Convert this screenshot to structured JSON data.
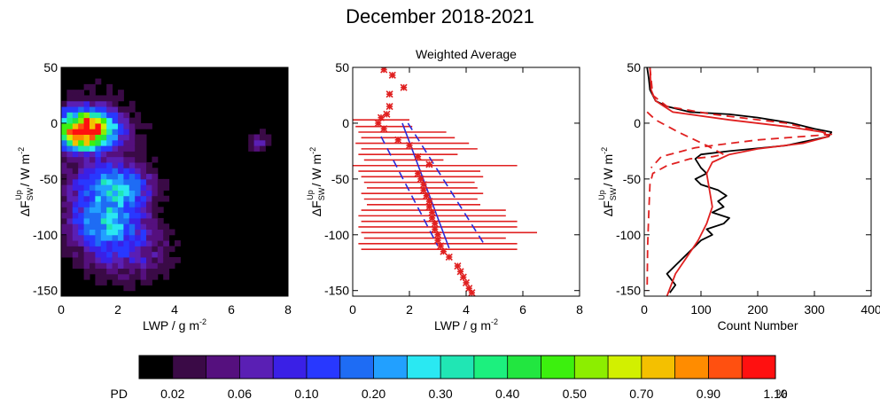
{
  "title": "December 2018-2021",
  "chart_data": [
    {
      "type": "heatmap",
      "xlabel_main": "LWP / g m",
      "xlabel_sup": "-2",
      "ylabel_main": "ΔF",
      "ylabel_sub": "SW",
      "ylabel_sup": "Up",
      "ylabel_unit": " / W m",
      "ylabel_unit_sup": "-2",
      "xlim": [
        0,
        8
      ],
      "ylim": [
        -155,
        50
      ],
      "xticks": [
        "0",
        "2",
        "4",
        "6",
        "8"
      ],
      "yticks": [
        "50",
        "0",
        "-50",
        "-100",
        "-150"
      ],
      "blobs": [
        {
          "x": 0.9,
          "y": -5,
          "sx": 0.55,
          "sy": 9,
          "w": 1.1
        },
        {
          "x": 0.6,
          "y": -12,
          "sx": 0.3,
          "sy": 5,
          "w": 0.5
        },
        {
          "x": 1.9,
          "y": -58,
          "sx": 0.7,
          "sy": 11,
          "w": 0.24
        },
        {
          "x": 1.6,
          "y": -88,
          "sx": 0.75,
          "sy": 13,
          "w": 0.2
        },
        {
          "x": 1.3,
          "y": -40,
          "sx": 1.3,
          "sy": 55,
          "w": 0.05
        },
        {
          "x": 2.4,
          "y": -115,
          "sx": 1.0,
          "sy": 18,
          "w": 0.07
        },
        {
          "x": 7.0,
          "y": -16,
          "sx": 0.25,
          "sy": 6,
          "w": 0.07
        }
      ]
    },
    {
      "type": "scatter",
      "title": "Weighted Average",
      "xlabel_main": "LWP / g m",
      "xlabel_sup": "-2",
      "ylabel_main": "ΔF",
      "ylabel_sub": "SW",
      "ylabel_sup": "Up",
      "ylabel_unit": " / W m",
      "ylabel_unit_sup": "-2",
      "xlim": [
        0,
        8
      ],
      "ylim": [
        -155,
        50
      ],
      "xticks": [
        "0",
        "2",
        "4",
        "6",
        "8"
      ],
      "yticks": [
        "50",
        "0",
        "-50",
        "-100",
        "-150"
      ],
      "points": [
        [
          1.1,
          48
        ],
        [
          1.4,
          43
        ],
        [
          1.8,
          32
        ],
        [
          1.3,
          26
        ],
        [
          1.3,
          15
        ],
        [
          1.2,
          8
        ],
        [
          1.0,
          5
        ],
        [
          0.9,
          0
        ],
        [
          1.1,
          -5
        ],
        [
          1.6,
          -15
        ],
        [
          2.0,
          -20
        ],
        [
          2.3,
          -30
        ],
        [
          2.7,
          -37
        ],
        [
          2.3,
          -45
        ],
        [
          2.4,
          -50
        ],
        [
          2.5,
          -55
        ],
        [
          2.5,
          -60
        ],
        [
          2.6,
          -65
        ],
        [
          2.7,
          -70
        ],
        [
          2.7,
          -75
        ],
        [
          2.8,
          -80
        ],
        [
          2.8,
          -85
        ],
        [
          2.9,
          -90
        ],
        [
          2.9,
          -95
        ],
        [
          3.0,
          -100
        ],
        [
          3.0,
          -105
        ],
        [
          3.1,
          -110
        ],
        [
          3.2,
          -115
        ],
        [
          3.4,
          -120
        ],
        [
          3.7,
          -128
        ],
        [
          3.8,
          -133
        ],
        [
          3.9,
          -138
        ],
        [
          4.0,
          -143
        ],
        [
          4.1,
          -148
        ],
        [
          4.2,
          -152
        ]
      ],
      "hbars": [
        {
          "y": 3,
          "x0": 0.0,
          "x1": 2.0
        },
        {
          "y": -3,
          "x0": 0.1,
          "x1": 2.1
        },
        {
          "y": -8,
          "x0": 0.2,
          "x1": 3.3
        },
        {
          "y": -13,
          "x0": 0.3,
          "x1": 3.6
        },
        {
          "y": -18,
          "x0": 0.1,
          "x1": 4.1
        },
        {
          "y": -23,
          "x0": 0.3,
          "x1": 4.4
        },
        {
          "y": -28,
          "x0": 0.2,
          "x1": 3.7
        },
        {
          "y": -33,
          "x0": 0.4,
          "x1": 3.2
        },
        {
          "y": -38,
          "x0": 0.0,
          "x1": 5.8
        },
        {
          "y": -43,
          "x0": 0.2,
          "x1": 4.5
        },
        {
          "y": -48,
          "x0": 0.3,
          "x1": 4.6
        },
        {
          "y": -53,
          "x0": 0.4,
          "x1": 4.3
        },
        {
          "y": -58,
          "x0": 0.5,
          "x1": 4.4
        },
        {
          "y": -63,
          "x0": 0.3,
          "x1": 4.6
        },
        {
          "y": -68,
          "x0": 0.4,
          "x1": 4.4
        },
        {
          "y": -73,
          "x0": 0.5,
          "x1": 4.5
        },
        {
          "y": -78,
          "x0": 0.3,
          "x1": 5.4
        },
        {
          "y": -83,
          "x0": 0.2,
          "x1": 5.4
        },
        {
          "y": -88,
          "x0": 0.3,
          "x1": 5.8
        },
        {
          "y": -93,
          "x0": 0.2,
          "x1": 5.8
        },
        {
          "y": -98,
          "x0": 0.3,
          "x1": 6.5
        },
        {
          "y": -103,
          "x0": 0.4,
          "x1": 5.4
        },
        {
          "y": -108,
          "x0": 0.2,
          "x1": 5.8
        },
        {
          "y": -113,
          "x0": 0.3,
          "x1": 5.8
        }
      ],
      "fit": [
        [
          1.75,
          0
        ],
        [
          3.4,
          -112
        ]
      ],
      "fit_upper": [
        [
          1.95,
          0
        ],
        [
          4.6,
          -107
        ]
      ],
      "fit_lower": [
        [
          1.0,
          -12
        ],
        [
          3.0,
          -110
        ]
      ]
    },
    {
      "type": "line",
      "xlabel": "Count Number",
      "ylabel_main": "ΔF",
      "ylabel_sub": "SW",
      "ylabel_sup": "Up",
      "ylabel_unit": " / W m",
      "ylabel_unit_sup": "-2",
      "xlim": [
        0,
        400
      ],
      "ylim": [
        -155,
        50
      ],
      "xticks": [
        "0",
        "100",
        "200",
        "300",
        "400"
      ],
      "yticks": [
        "50",
        "0",
        "-50",
        "-100",
        "-150"
      ],
      "series": [
        {
          "color": "#000000",
          "style": "solid",
          "points": [
            [
              5,
              50
            ],
            [
              8,
              40
            ],
            [
              10,
              30
            ],
            [
              15,
              25
            ],
            [
              20,
              20
            ],
            [
              40,
              15
            ],
            [
              80,
              10
            ],
            [
              150,
              8
            ],
            [
              200,
              5
            ],
            [
              260,
              0
            ],
            [
              300,
              -5
            ],
            [
              330,
              -8
            ],
            [
              325,
              -12
            ],
            [
              250,
              -20
            ],
            [
              150,
              -25
            ],
            [
              100,
              -28
            ],
            [
              90,
              -32
            ],
            [
              100,
              -40
            ],
            [
              110,
              -45
            ],
            [
              90,
              -50
            ],
            [
              100,
              -55
            ],
            [
              130,
              -60
            ],
            [
              145,
              -65
            ],
            [
              130,
              -70
            ],
            [
              140,
              -75
            ],
            [
              120,
              -80
            ],
            [
              150,
              -85
            ],
            [
              140,
              -90
            ],
            [
              110,
              -95
            ],
            [
              120,
              -100
            ],
            [
              100,
              -105
            ],
            [
              80,
              -115
            ],
            [
              60,
              -125
            ],
            [
              40,
              -135
            ],
            [
              55,
              -145
            ],
            [
              45,
              -152
            ]
          ]
        },
        {
          "color": "#e02020",
          "style": "solid",
          "points": [
            [
              10,
              50
            ],
            [
              12,
              30
            ],
            [
              20,
              20
            ],
            [
              50,
              10
            ],
            [
              150,
              3
            ],
            [
              250,
              -3
            ],
            [
              315,
              -8
            ],
            [
              325,
              -12
            ],
            [
              280,
              -18
            ],
            [
              200,
              -23
            ],
            [
              150,
              -28
            ],
            [
              120,
              -35
            ],
            [
              110,
              -45
            ],
            [
              115,
              -60
            ],
            [
              120,
              -75
            ],
            [
              110,
              -90
            ],
            [
              95,
              -105
            ],
            [
              75,
              -120
            ],
            [
              55,
              -135
            ],
            [
              40,
              -155
            ]
          ]
        },
        {
          "color": "#e02020",
          "style": "dash",
          "points": [
            [
              10,
              50
            ],
            [
              15,
              25
            ],
            [
              40,
              15
            ],
            [
              120,
              8
            ],
            [
              250,
              0
            ],
            [
              330,
              -10
            ],
            [
              200,
              -15
            ],
            [
              90,
              -22
            ],
            [
              30,
              -30
            ],
            [
              12,
              -40
            ]
          ]
        },
        {
          "color": "#e02020",
          "style": "dash",
          "points": [
            [
              5,
              10
            ],
            [
              20,
              3
            ],
            [
              60,
              -8
            ],
            [
              110,
              -20
            ],
            [
              140,
              -28
            ],
            [
              120,
              -30
            ],
            [
              80,
              -32
            ],
            [
              40,
              -38
            ],
            [
              15,
              -45
            ],
            [
              10,
              -55
            ],
            [
              8,
              -80
            ],
            [
              6,
              -110
            ],
            [
              5,
              -150
            ]
          ]
        }
      ]
    }
  ],
  "colorbar": {
    "label": "PD",
    "unit": "%",
    "colors": [
      "#000000",
      "#3a0a46",
      "#55107e",
      "#5a1fb4",
      "#3a20e6",
      "#2838ff",
      "#1e6cf4",
      "#22a0ff",
      "#2ae8f2",
      "#20e6b4",
      "#1cf07e",
      "#22e640",
      "#3cf00e",
      "#8cee00",
      "#d2f000",
      "#f4c000",
      "#ff8c00",
      "#ff5010",
      "#ff1010"
    ],
    "ticks": [
      "0.02",
      "0.06",
      "0.10",
      "0.20",
      "0.30",
      "0.40",
      "0.50",
      "0.70",
      "0.90",
      "1.10"
    ]
  }
}
